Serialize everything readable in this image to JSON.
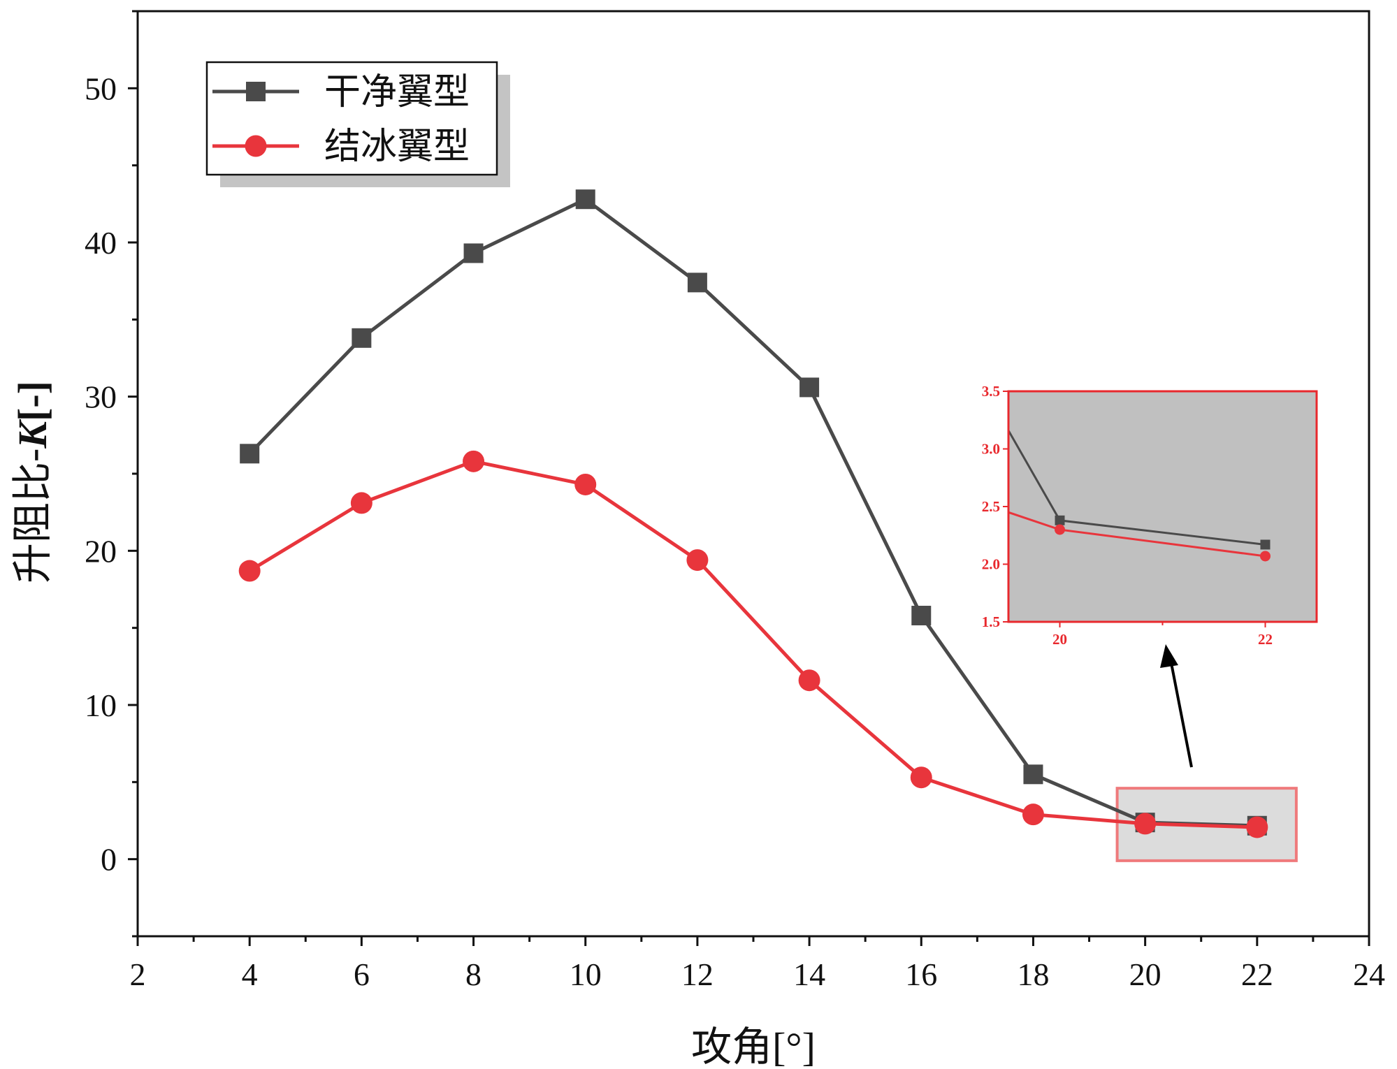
{
  "colors": {
    "clean": "#4a4a4a",
    "iced": "#e8353c",
    "inset_frame": "#e8282d",
    "inset_bg": "#c0c0c0",
    "highlight_fill": "#dcdcdc",
    "highlight_stroke": "#ef7a7c"
  },
  "chart_data": {
    "type": "line",
    "title": "",
    "xlabel": "攻角[°]",
    "ylabel_main": "升阻比-",
    "ylabel_bold": "K",
    "ylabel_suffix": "[-]",
    "xlim": [
      2,
      24
    ],
    "ylim": [
      -5,
      55
    ],
    "x_ticks": [
      2,
      4,
      6,
      8,
      10,
      12,
      14,
      16,
      18,
      20,
      22,
      24
    ],
    "y_ticks": [
      0,
      10,
      20,
      30,
      40,
      50
    ],
    "grid": false,
    "legend_position": "top-left",
    "x": [
      4,
      6,
      8,
      10,
      12,
      14,
      16,
      18,
      20,
      22
    ],
    "series": [
      {
        "name": "干净翼型",
        "marker": "square",
        "color": "#4a4a4a",
        "values": [
          26.3,
          33.8,
          39.3,
          42.8,
          37.4,
          30.6,
          15.8,
          5.5,
          2.38,
          2.17
        ]
      },
      {
        "name": "结冰翼型",
        "marker": "circle",
        "color": "#e8353c",
        "values": [
          18.7,
          23.1,
          25.8,
          24.3,
          19.4,
          11.6,
          5.3,
          2.9,
          2.3,
          2.07
        ]
      }
    ],
    "inset": {
      "xlim": [
        19.5,
        22.5
      ],
      "ylim": [
        1.5,
        3.5
      ],
      "x_ticks": [
        "20",
        "22"
      ],
      "y_ticks": [
        "1.5",
        "2.0",
        "2.5",
        "3.0",
        "3.5"
      ],
      "highlight_box": {
        "x": [
          19.5,
          22.7
        ],
        "y": [
          -0.1,
          4.6
        ]
      }
    }
  }
}
